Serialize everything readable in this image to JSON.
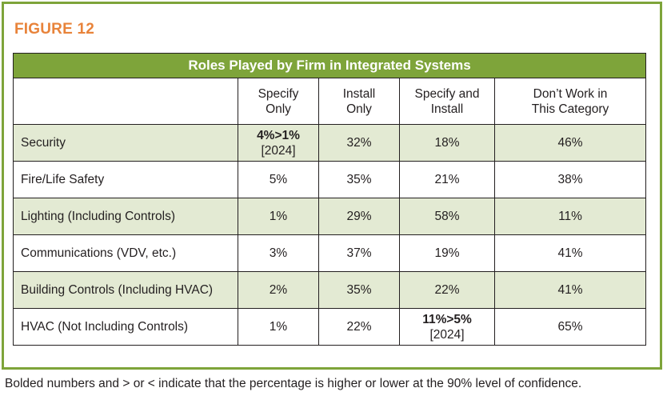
{
  "figure_label": "FIGURE 12",
  "table": {
    "title": "Roles Played by Firm in Integrated Systems",
    "headers": [
      "Specify Only",
      "Install Only",
      "Specify and Install",
      "Don’t Work in This Category"
    ],
    "header_lines": [
      [
        "Specify",
        "Only"
      ],
      [
        "Install",
        "Only"
      ],
      [
        "Specify and",
        "Install"
      ],
      [
        "Don’t Work in",
        "This Category"
      ]
    ],
    "rows": [
      {
        "name": "Security",
        "cells": [
          {
            "bold": "4%>1%",
            "note": "[2024]"
          },
          {
            "value": "32%"
          },
          {
            "value": "18%"
          },
          {
            "value": "46%"
          }
        ]
      },
      {
        "name": "Fire/Life Safety",
        "cells": [
          {
            "value": "5%"
          },
          {
            "value": "35%"
          },
          {
            "value": "21%"
          },
          {
            "value": "38%"
          }
        ]
      },
      {
        "name": "Lighting (Including Controls)",
        "cells": [
          {
            "value": "1%"
          },
          {
            "value": "29%"
          },
          {
            "value": "58%"
          },
          {
            "value": "11%"
          }
        ]
      },
      {
        "name": "Communications (VDV, etc.)",
        "cells": [
          {
            "value": "3%"
          },
          {
            "value": "37%"
          },
          {
            "value": "19%"
          },
          {
            "value": "41%"
          }
        ]
      },
      {
        "name": "Building Controls (Including HVAC)",
        "cells": [
          {
            "value": "2%"
          },
          {
            "value": "35%"
          },
          {
            "value": "22%"
          },
          {
            "value": "41%"
          }
        ]
      },
      {
        "name": "HVAC (Not Including Controls)",
        "cells": [
          {
            "value": "1%"
          },
          {
            "value": "22%"
          },
          {
            "bold": "11%>5%",
            "note": "[2024]"
          },
          {
            "value": "65%"
          }
        ]
      }
    ]
  },
  "caption": "Bolded numbers and > or < indicate that the percentage is higher or lower at the 90% level of confidence.",
  "colors": {
    "accent_green": "#7ea43a",
    "row_shade": "#e3ead3",
    "label_orange": "#e8833a"
  }
}
